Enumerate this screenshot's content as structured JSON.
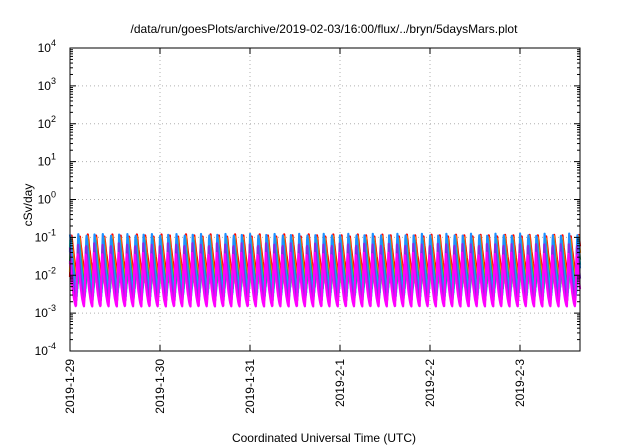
{
  "chart_data": {
    "type": "line",
    "title": "/data/run/goesPlots/archive/2019-02-03/16:00/flux/../bryn/5daysMars.plot",
    "xlabel": "Coordinated Universal Time (UTC)",
    "ylabel": "cSv/day",
    "y_scale": "log",
    "ylim": [
      0.0001,
      10000
    ],
    "y_ticks": [
      {
        "value": 0.0001,
        "base": "10",
        "exp": "-4"
      },
      {
        "value": 0.001,
        "base": "10",
        "exp": "-3"
      },
      {
        "value": 0.01,
        "base": "10",
        "exp": "-2"
      },
      {
        "value": 0.1,
        "base": "10",
        "exp": "-1"
      },
      {
        "value": 1,
        "base": "10",
        "exp": "0"
      },
      {
        "value": 10,
        "base": "10",
        "exp": "1"
      },
      {
        "value": 100,
        "base": "10",
        "exp": "2"
      },
      {
        "value": 1000,
        "base": "10",
        "exp": "3"
      },
      {
        "value": 10000,
        "base": "10",
        "exp": "4"
      }
    ],
    "xlim": [
      "2019-01-29T00:00",
      "2019-02-03T16:00"
    ],
    "x_ticks": [
      "2019-1-29",
      "2019-1-30",
      "2019-1-31",
      "2019-2-1",
      "2019-2-2",
      "2019-2-3"
    ],
    "grid": true,
    "cycles_per_day": 11,
    "series": [
      {
        "color": "#FF0000",
        "peak": 0.12,
        "trough": 0.009
      },
      {
        "color": "#FF8C00",
        "peak": 0.11,
        "trough": 0.006
      },
      {
        "color": "#2E8B57",
        "peak": 0.095,
        "trough": 0.0045
      },
      {
        "color": "#00CED1",
        "peak": 0.1,
        "trough": 0.0035
      },
      {
        "color": "#1E90FF",
        "peak": 0.13,
        "trough": 0.0028
      },
      {
        "color": "#8A2BE2",
        "peak": 0.07,
        "trough": 0.0022
      },
      {
        "color": "#FF00FF",
        "peak": 0.04,
        "trough": 0.0015
      }
    ]
  }
}
